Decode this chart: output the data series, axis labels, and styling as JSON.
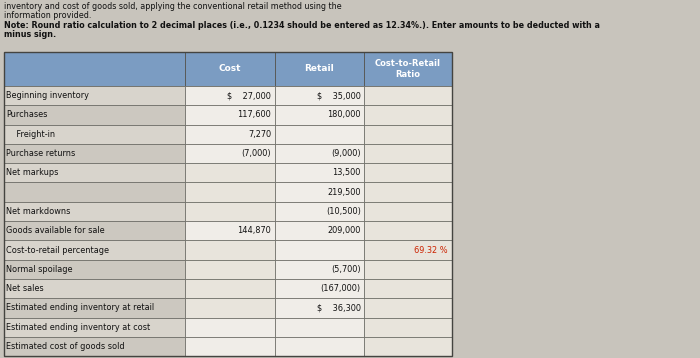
{
  "header_line1": "inventory and cost of goods sold, applying the conventional retail method using the",
  "header_line2": "information provided.",
  "note_line1": "Note: Round ratio calculation to 2 decimal places (i.e., 0.1234 should be entered as 12.34%.). Enter amounts to be deducted with a",
  "note_line2": "minus sign.",
  "col_headers": [
    "Cost",
    "Retail",
    "Cost-to-Retail\nRatio"
  ],
  "rows": [
    {
      "label": "Beginning inventory",
      "cost": "$    27,000",
      "retail": "$    35,000",
      "ratio": ""
    },
    {
      "label": "Purchases",
      "cost": "117,600",
      "retail": "180,000",
      "ratio": ""
    },
    {
      "label": "    Freight-in",
      "cost": "7,270",
      "retail": "",
      "ratio": ""
    },
    {
      "label": "Purchase returns",
      "cost": "(7,000)",
      "retail": "(9,000)",
      "ratio": ""
    },
    {
      "label": "Net markups",
      "cost": "",
      "retail": "13,500",
      "ratio": ""
    },
    {
      "label": "",
      "cost": "",
      "retail": "219,500",
      "ratio": ""
    },
    {
      "label": "Net markdowns",
      "cost": "",
      "retail": "(10,500)",
      "ratio": ""
    },
    {
      "label": "Goods available for sale",
      "cost": "144,870",
      "retail": "209,000",
      "ratio": ""
    },
    {
      "label": "Cost-to-retail percentage",
      "cost": "",
      "retail": "",
      "ratio": "69.32 %"
    },
    {
      "label": "Normal spoilage",
      "cost": "",
      "retail": "(5,700)",
      "ratio": ""
    },
    {
      "label": "Net sales",
      "cost": "",
      "retail": "(167,000)",
      "ratio": ""
    },
    {
      "label": "Estimated ending inventory at retail",
      "cost": "",
      "retail": "$    36,300",
      "ratio": ""
    },
    {
      "label": "Estimated ending inventory at cost",
      "cost": "",
      "retail": "",
      "ratio": ""
    },
    {
      "label": "Estimated cost of goods sold",
      "cost": "",
      "retail": "",
      "ratio": ""
    }
  ],
  "bg_color": "#c8c4bc",
  "label_col_bg_even": "#d8d4cc",
  "label_col_bg_odd": "#ccc8c0",
  "cost_col_bg": "#e8e4dc",
  "retail_col_bg": "#e8e4dc",
  "ratio_col_bg": "#e0dcd4",
  "header_bg": "#7b9cc2",
  "header_text_color": "#ffffff",
  "text_color": "#111111",
  "ratio_text_color": "#cc2200",
  "ratio_pct_color": "#cc2200"
}
